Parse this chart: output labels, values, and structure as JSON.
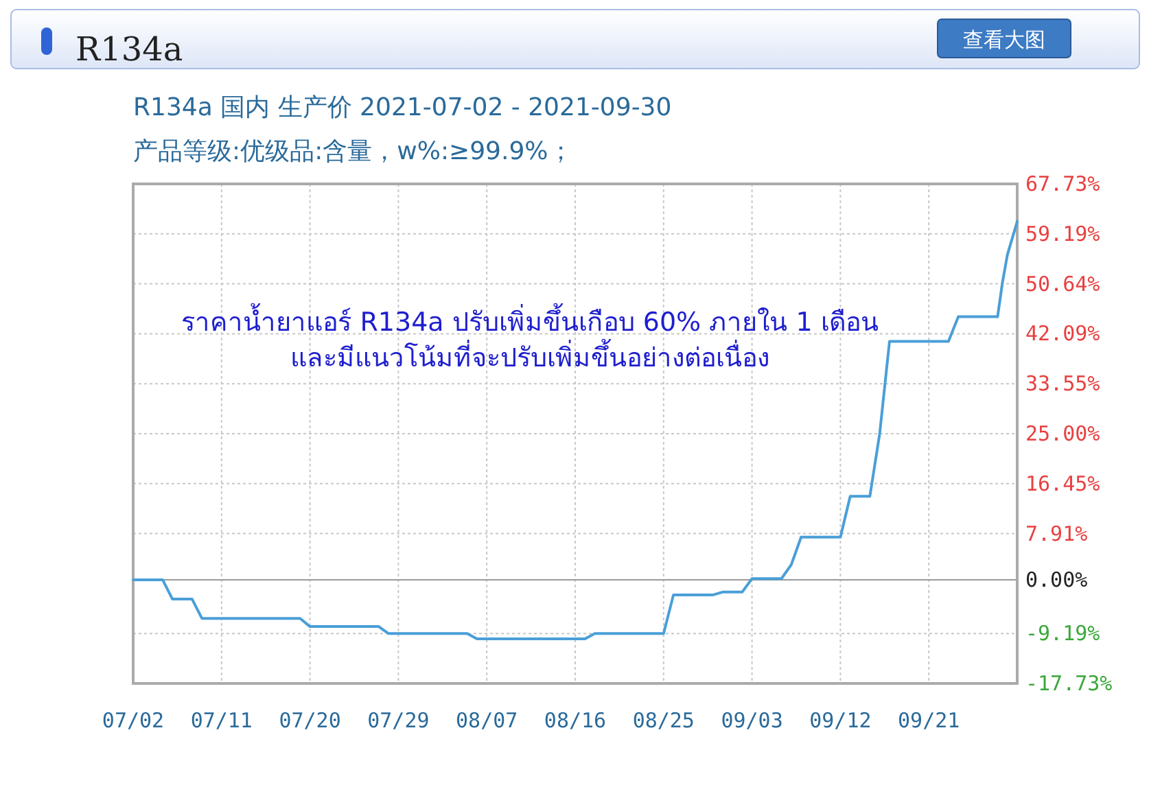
{
  "chart_data": {
    "type": "line",
    "title": "R134a 国内 生产价 2021-07-02 - 2021-09-30",
    "subtitle": "产品等级:优级品:含量，w%:≥99.9%；",
    "annotations": [
      "R134a",
      "查看大图",
      "ราคาน้ำยาแอร์ R134a ปรับเพิ่มขึ้นเกือบ 60% ภายใน 1 เดือน\nและมีแนวโน้มที่จะปรับเพิ่มขึ้นอย่างต่อเนื่อง"
    ],
    "xlim": [
      "2021-07-02",
      "2021-09-30"
    ],
    "xticks": [
      {
        "value": "2021-07-02",
        "label": "07/02"
      },
      {
        "value": "2021-07-11",
        "label": "07/11"
      },
      {
        "value": "2021-07-20",
        "label": "07/20"
      },
      {
        "value": "2021-07-29",
        "label": "07/29"
      },
      {
        "value": "2021-08-07",
        "label": "08/07"
      },
      {
        "value": "2021-08-16",
        "label": "08/16"
      },
      {
        "value": "2021-08-25",
        "label": "08/25"
      },
      {
        "value": "2021-09-03",
        "label": "09/03"
      },
      {
        "value": "2021-09-12",
        "label": "09/12"
      },
      {
        "value": "2021-09-21",
        "label": "09/21"
      }
    ],
    "ylim": [
      -17.73,
      67.73
    ],
    "yticks": [
      {
        "value": 67.73,
        "label": "67.73%"
      },
      {
        "value": 59.19,
        "label": "59.19%"
      },
      {
        "value": 50.64,
        "label": "50.64%"
      },
      {
        "value": 42.09,
        "label": "42.09%"
      },
      {
        "value": 33.55,
        "label": "33.55%"
      },
      {
        "value": 25.0,
        "label": "25.00%"
      },
      {
        "value": 16.45,
        "label": "16.45%"
      },
      {
        "value": 7.91,
        "label": "7.91%"
      },
      {
        "value": 0,
        "label": "0.00%"
      },
      {
        "value": -9.19,
        "label": "-9.19%"
      },
      {
        "value": -17.73,
        "label": "-17.73%"
      }
    ],
    "grid": true,
    "series": [
      {
        "color": "#4a9fd8",
        "x": [
          "2021-07-02",
          "2021-07-05",
          "2021-07-06",
          "2021-07-08",
          "2021-07-09",
          "2021-07-19",
          "2021-07-20",
          "2021-07-27",
          "2021-07-28",
          "2021-08-05",
          "2021-08-06",
          "2021-08-17",
          "2021-08-18",
          "2021-08-25",
          "2021-08-26",
          "2021-08-30",
          "2021-08-31",
          "2021-09-02",
          "2021-09-03",
          "2021-09-06",
          "2021-09-07",
          "2021-09-08",
          "2021-09-12",
          "2021-09-13",
          "2021-09-15",
          "2021-09-16",
          "2021-09-17",
          "2021-09-23",
          "2021-09-24",
          "2021-09-28",
          "2021-09-28T12:00",
          "2021-09-29",
          "2021-09-30"
        ],
        "values": [
          0,
          0,
          -3.3,
          -3.3,
          -6.6,
          -6.6,
          -8.0,
          -8.0,
          -9.2,
          -9.2,
          -10.1,
          -10.1,
          -9.2,
          -9.2,
          -2.6,
          -2.6,
          -2.1,
          -2.1,
          0.2,
          0.2,
          2.6,
          7.3,
          7.3,
          14.3,
          14.3,
          25,
          40.8,
          40.8,
          45.0,
          45.0,
          50.9,
          55.6,
          61.3
        ]
      }
    ]
  }
}
